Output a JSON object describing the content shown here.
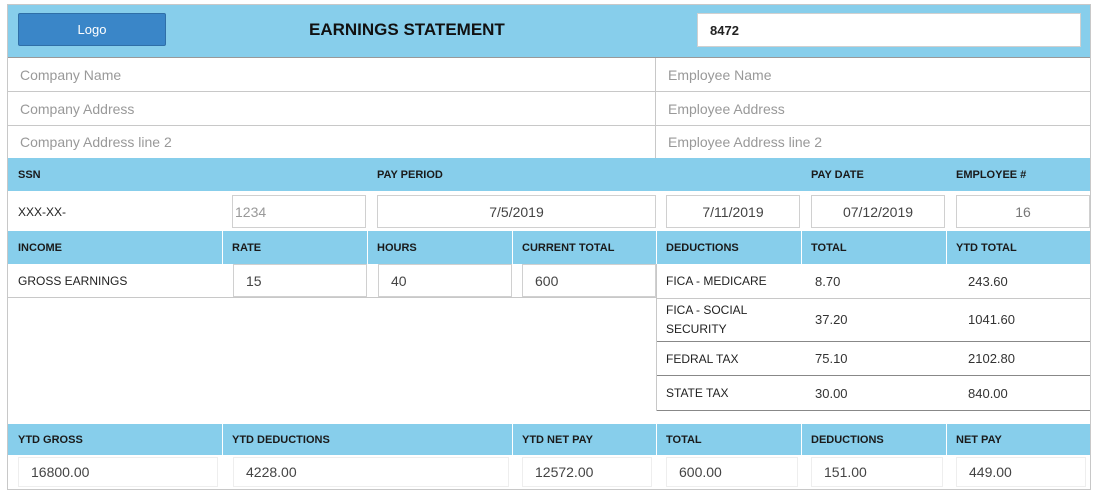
{
  "header": {
    "logo_label": "Logo",
    "title": "EARNINGS STATEMENT",
    "statement_no": "8472"
  },
  "company": {
    "name_placeholder": "Company Name",
    "address_placeholder": "Company Address",
    "address2_placeholder": "Company Address line 2"
  },
  "employee": {
    "name_placeholder": "Employee Name",
    "address_placeholder": "Employee Address",
    "address2_placeholder": "Employee Address line 2"
  },
  "info_headers": {
    "ssn": "SSN",
    "pay_period": "PAY PERIOD",
    "pay_date": "PAY DATE",
    "employee_no": "EMPLOYEE #"
  },
  "info_values": {
    "ssn_prefix": "XXX-XX-",
    "ssn_last4": "1234",
    "period_start": "7/5/2019",
    "period_end": "7/11/2019",
    "pay_date": "07/12/2019",
    "employee_no": "16"
  },
  "income_headers": {
    "income": "INCOME",
    "rate": "RATE",
    "hours": "HOURS",
    "current_total": "CURRENT TOTAL"
  },
  "deduction_headers": {
    "deductions": "DEDUCTIONS",
    "total": "TOTAL",
    "ytd_total": "YTD TOTAL"
  },
  "income_row": {
    "label": "GROSS EARNINGS",
    "rate": "15",
    "hours": "40",
    "current_total": "600"
  },
  "deductions": [
    {
      "name": "FICA - MEDICARE",
      "total": "8.70",
      "ytd": "243.60"
    },
    {
      "name_line1": "FICA - SOCIAL",
      "name_line2": "SECURITY",
      "total": "37.20",
      "ytd": "1041.60"
    },
    {
      "name": "FEDRAL TAX",
      "total": "75.10",
      "ytd": "2102.80"
    },
    {
      "name": "STATE TAX",
      "total": "30.00",
      "ytd": "840.00"
    }
  ],
  "summary_headers": {
    "ytd_gross": "YTD GROSS",
    "ytd_deductions": "YTD DEDUCTIONS",
    "ytd_net_pay": "YTD NET PAY",
    "total": "TOTAL",
    "deductions": "DEDUCTIONS",
    "net_pay": "NET PAY"
  },
  "summary_values": {
    "ytd_gross": "16800.00",
    "ytd_deductions": "4228.00",
    "ytd_net_pay": "12572.00",
    "total": "600.00",
    "deductions": "151.00",
    "net_pay": "449.00"
  },
  "colors": {
    "header_band": "#87ceeb",
    "logo_button": "#3a86c8"
  }
}
